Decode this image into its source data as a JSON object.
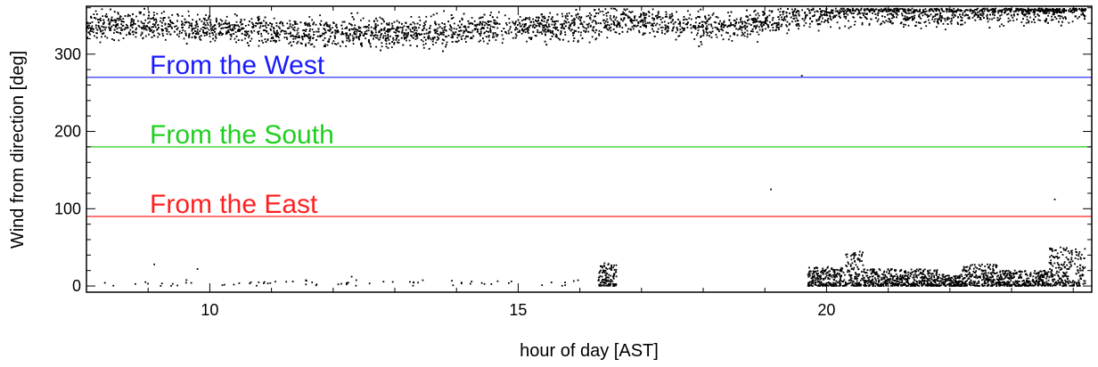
{
  "chart_data": {
    "type": "scatter",
    "xlabel": "hour of day [AST]",
    "ylabel": "Wind from direction [deg]",
    "xlim": [
      8,
      24.3
    ],
    "ylim": [
      -8,
      362
    ],
    "x_ticks": [
      10,
      15,
      20
    ],
    "y_ticks": [
      0,
      100,
      200,
      300
    ],
    "grid": false,
    "marker_color": "#000000",
    "reference_lines": [
      {
        "label": "From the West",
        "value": 270,
        "color": "#1a1aff"
      },
      {
        "label": "From the South",
        "value": 180,
        "color": "#1fcf1f"
      },
      {
        "label": "From the East",
        "value": 90,
        "color": "#ff2020"
      }
    ],
    "trend_anchors": [
      {
        "x": 8.0,
        "y": 335
      },
      {
        "x": 9.0,
        "y": 338
      },
      {
        "x": 10.0,
        "y": 333
      },
      {
        "x": 11.0,
        "y": 330
      },
      {
        "x": 12.0,
        "y": 328
      },
      {
        "x": 13.0,
        "y": 327
      },
      {
        "x": 14.0,
        "y": 330
      },
      {
        "x": 15.0,
        "y": 335
      },
      {
        "x": 16.0,
        "y": 337
      },
      {
        "x": 16.8,
        "y": 345
      },
      {
        "x": 17.5,
        "y": 338
      },
      {
        "x": 18.5,
        "y": 336
      },
      {
        "x": 19.5,
        "y": 348
      },
      {
        "x": 20.5,
        "y": 356
      },
      {
        "x": 21.5,
        "y": 352
      },
      {
        "x": 22.5,
        "y": 356
      },
      {
        "x": 24.2,
        "y": 358
      }
    ],
    "low_clusters": [
      {
        "x_range": [
          16.3,
          16.6
        ],
        "y_range": [
          0,
          30
        ]
      },
      {
        "x_range": [
          19.7,
          20.3
        ],
        "y_range": [
          0,
          25
        ]
      },
      {
        "x_range": [
          20.3,
          20.6
        ],
        "y_range": [
          0,
          45
        ]
      },
      {
        "x_range": [
          20.6,
          21.8
        ],
        "y_range": [
          0,
          22
        ]
      },
      {
        "x_range": [
          21.8,
          22.2
        ],
        "y_range": [
          0,
          15
        ]
      },
      {
        "x_range": [
          22.2,
          22.8
        ],
        "y_range": [
          0,
          28
        ]
      },
      {
        "x_range": [
          22.8,
          23.6
        ],
        "y_range": [
          0,
          20
        ]
      },
      {
        "x_range": [
          23.6,
          24.2
        ],
        "y_range": [
          0,
          50
        ]
      }
    ],
    "outliers": [
      {
        "x": 9.1,
        "y": 28
      },
      {
        "x": 9.8,
        "y": 22
      },
      {
        "x": 12.3,
        "y": 12
      },
      {
        "x": 19.1,
        "y": 125
      },
      {
        "x": 19.6,
        "y": 272
      },
      {
        "x": 23.7,
        "y": 112
      }
    ]
  }
}
